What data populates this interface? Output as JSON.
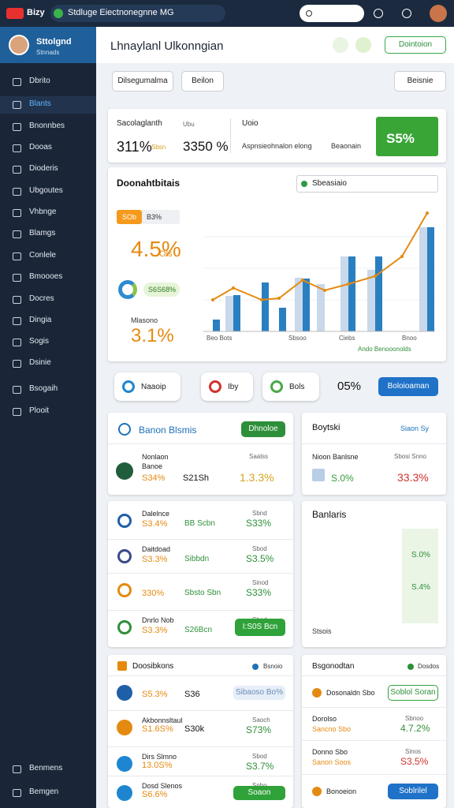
{
  "topbar": {
    "logo": "Bizy",
    "title": "Stdluge Eiectnonegnne MG"
  },
  "sidebar": {
    "user": "Sttolgnd",
    "role": "Stnnads",
    "items": [
      "Dbrito",
      "Blants",
      "Bnonnbes",
      "Dooas",
      "Dioderis",
      "Ubgoutes",
      "Vhbnge",
      "Blamgs",
      "Conlele",
      "Bmoooes",
      "Docres",
      "Dingia",
      "Sogis",
      "Dsinie",
      "Bsogaih",
      "Plooit"
    ],
    "active": 1,
    "footer": [
      "Benmens",
      "Bemgen"
    ]
  },
  "header": {
    "title": "Lhnaylanl Ulkonngian",
    "button": "Dointoion"
  },
  "toolbar": [
    "Dilsegumalma",
    "Beilon",
    "Beisnie"
  ],
  "kpi": {
    "label1": "Sacolaglanth",
    "sub1": "Ubu",
    "value1": "311%",
    "unit1": "Sbsn",
    "value2": "3350 %",
    "label2": "Uoio",
    "text2": "Aspnsieohnalon elong",
    "text3": "Beaonain",
    "badge": "S5%"
  },
  "chart": {
    "title": "Doonahtbitais",
    "select": "Sbeasiaio",
    "chip": "SOb",
    "chip_value": "B3%",
    "big1": "4.5%",
    "big1_sub": "Ols",
    "pill": "S6S68%",
    "label3": "Mlasono",
    "big2": "3.1%",
    "x_labels": [
      "Beo Bots",
      "Sbsoo",
      "Ciebs",
      "Bnoo"
    ],
    "legend": "Ando Benooonolds",
    "ylim": [
      0,
      170
    ],
    "bars_light": [
      null,
      45,
      null,
      null,
      68,
      60,
      95,
      78,
      null,
      132
    ],
    "bars_blue": [
      15,
      46,
      62,
      30,
      67,
      null,
      95,
      95,
      null,
      132
    ],
    "line": [
      40,
      55,
      40,
      42,
      65,
      52,
      60,
      70,
      95,
      150
    ]
  },
  "pills": [
    "Naaoip",
    "Iby",
    "Bols",
    "05%",
    "Boloioaman"
  ],
  "cardA": {
    "title": "Banon Blsmis",
    "button": "Dhnoloe",
    "name": "Nonlaon",
    "sub": "Banoe",
    "v1": "S34%",
    "v2": "S21Sh",
    "label": "Saalss",
    "v3": "1.3.3%"
  },
  "cardB": {
    "title": "Boytski",
    "link": "Siaon Sy",
    "name": "Nioon Banlsne",
    "label": "Sbosi Snno",
    "v1": "S.0%",
    "v2": "33.3%"
  },
  "cardC": {
    "rows": [
      {
        "name": "Dalelnce",
        "v1": "S3.4%",
        "v2": "BB Scbn",
        "label": "Sbnd",
        "v3": "S33%"
      },
      {
        "name": "Daitdoad",
        "v1": "S3.3%",
        "v2": "Sibbdn",
        "label": "Sbod",
        "v3": "S3.5%"
      },
      {
        "v1": "330%",
        "v2": "Sbsto Sbn",
        "label": "Sinod",
        "v3": "S33%"
      },
      {
        "name": "Dnrlo Nob",
        "v1": "S3.3%",
        "v2": "S26Bcn",
        "label": "Sbod",
        "button": "I:S0S Bcn"
      }
    ]
  },
  "cardD": {
    "title": "Banlaris",
    "labels": [
      "S.0%",
      "S.4%"
    ],
    "foot": "Stsois",
    "ylim": [
      0,
      100
    ],
    "bars": [
      20,
      24,
      22,
      28,
      30,
      27,
      34,
      38,
      36,
      42,
      46,
      44,
      50,
      55,
      58,
      62,
      66,
      70,
      74,
      78
    ],
    "line": [
      18,
      26,
      32,
      40,
      46,
      52,
      60,
      68,
      78,
      88
    ]
  },
  "cardE": {
    "title": "Doosibkons",
    "link": "Bsnoio",
    "rows": [
      {
        "v1": "S5.3%",
        "v2": "S36",
        "button": "Sibaoso Bo%"
      },
      {
        "name": "Akbonnsltaul",
        "v1": "S1.6S%",
        "v2": "S30k",
        "label": "Saoch",
        "v3": "S73%"
      },
      {
        "name": "Dirs Slmno",
        "v1": "13.0S%",
        "label": "Sbod",
        "v3": "S3.7%"
      },
      {
        "name": "Dosd Slenos",
        "v1": "S6.6%",
        "label": "Snbo",
        "v3": "S3.3%",
        "button": "Soaon"
      }
    ]
  },
  "cardF": {
    "title": "Bsgonodtan",
    "link": "Dosdos",
    "rows": [
      {
        "name": "Dosonaldn Sbo",
        "button": "Soblol Soran"
      },
      {
        "name": "Dorolso",
        "sub": "Sancno Sbo",
        "label": "Sbnoo",
        "v3": "4.7.2%"
      },
      {
        "name": "Donno Sbo",
        "sub": "Sanon Soos",
        "label": "Sinos",
        "v3": "S3.5%"
      },
      {
        "name": "Bonoeion",
        "button": "Soblrilel"
      }
    ]
  }
}
